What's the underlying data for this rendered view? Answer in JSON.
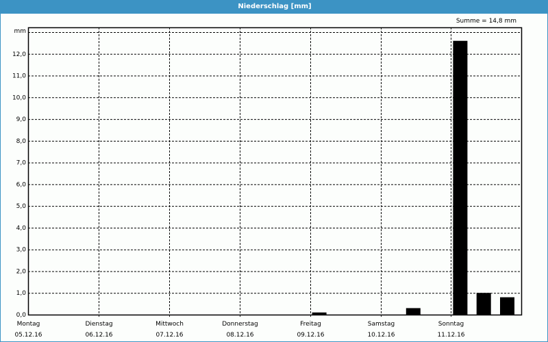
{
  "window": {
    "title": "Niederschlag [mm]",
    "colors": {
      "titlebar": "#3c93c4",
      "bars": "#000000"
    }
  },
  "summary": "Summe = 14,8 mm",
  "chart_data": {
    "type": "bar",
    "title": "Niederschlag [mm]",
    "ylabel": "mm",
    "ylim": [
      0,
      13
    ],
    "grid": true,
    "yticks": [
      "0,0",
      "1,0",
      "2,0",
      "3,0",
      "4,0",
      "5,0",
      "6,0",
      "7,0",
      "8,0",
      "9,0",
      "10,0",
      "11,0",
      "12,0"
    ],
    "days": [
      {
        "weekday": "Montag",
        "date": "05.12.16"
      },
      {
        "weekday": "Dienstag",
        "date": "06.12.16"
      },
      {
        "weekday": "Mittwoch",
        "date": "07.12.16"
      },
      {
        "weekday": "Donnerstag",
        "date": "08.12.16"
      },
      {
        "weekday": "Freitag",
        "date": "09.12.16"
      },
      {
        "weekday": "Samstag",
        "date": "10.12.16"
      },
      {
        "weekday": "Sonntag",
        "date": "11.12.16"
      }
    ],
    "values_per_day_third": [
      [
        0,
        0,
        0
      ],
      [
        0,
        0,
        0
      ],
      [
        0,
        0,
        0
      ],
      [
        0,
        0,
        0
      ],
      [
        0.1,
        0,
        0
      ],
      [
        0,
        0.3,
        0
      ],
      [
        12.6,
        1.0,
        0.8
      ]
    ]
  }
}
